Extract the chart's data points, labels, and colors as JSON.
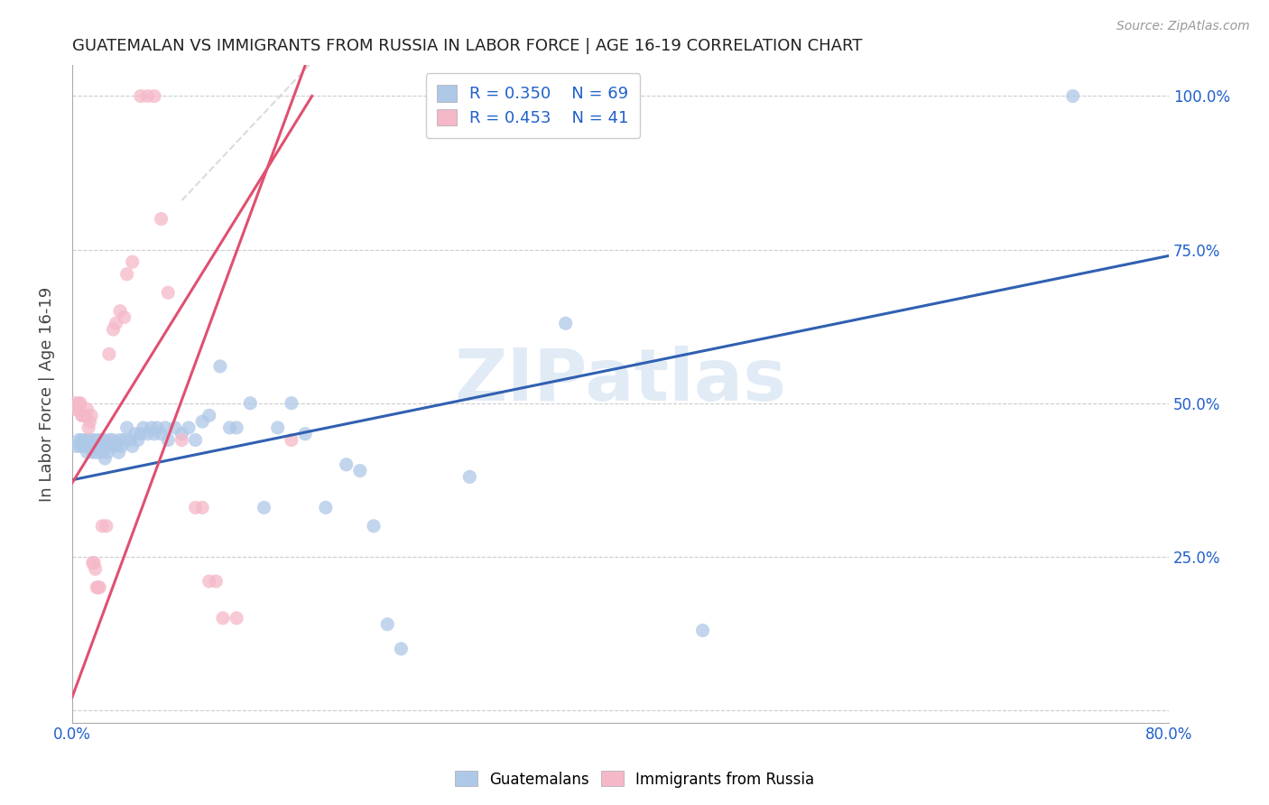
{
  "title": "GUATEMALAN VS IMMIGRANTS FROM RUSSIA IN LABOR FORCE | AGE 16-19 CORRELATION CHART",
  "source": "Source: ZipAtlas.com",
  "ylabel": "In Labor Force | Age 16-19",
  "xlim": [
    0.0,
    0.8
  ],
  "ylim": [
    -0.02,
    1.05
  ],
  "watermark": "ZIPatlas",
  "legend_r1": "R = 0.350",
  "legend_n1": "N = 69",
  "legend_r2": "R = 0.453",
  "legend_n2": "N = 41",
  "blue_color": "#aec8e8",
  "pink_color": "#f5b8c8",
  "blue_line_color": "#3060b0",
  "pink_line_color": "#e05070",
  "blue_scatter": [
    [
      0.003,
      0.43
    ],
    [
      0.005,
      0.44
    ],
    [
      0.006,
      0.43
    ],
    [
      0.007,
      0.44
    ],
    [
      0.008,
      0.43
    ],
    [
      0.009,
      0.44
    ],
    [
      0.01,
      0.43
    ],
    [
      0.011,
      0.42
    ],
    [
      0.012,
      0.44
    ],
    [
      0.013,
      0.43
    ],
    [
      0.014,
      0.44
    ],
    [
      0.015,
      0.42
    ],
    [
      0.016,
      0.43
    ],
    [
      0.017,
      0.44
    ],
    [
      0.018,
      0.42
    ],
    [
      0.019,
      0.43
    ],
    [
      0.02,
      0.44
    ],
    [
      0.021,
      0.42
    ],
    [
      0.022,
      0.43
    ],
    [
      0.023,
      0.44
    ],
    [
      0.024,
      0.41
    ],
    [
      0.025,
      0.43
    ],
    [
      0.026,
      0.42
    ],
    [
      0.027,
      0.44
    ],
    [
      0.028,
      0.43
    ],
    [
      0.03,
      0.44
    ],
    [
      0.032,
      0.43
    ],
    [
      0.034,
      0.42
    ],
    [
      0.035,
      0.44
    ],
    [
      0.036,
      0.43
    ],
    [
      0.038,
      0.44
    ],
    [
      0.04,
      0.46
    ],
    [
      0.042,
      0.44
    ],
    [
      0.044,
      0.43
    ],
    [
      0.046,
      0.45
    ],
    [
      0.048,
      0.44
    ],
    [
      0.05,
      0.45
    ],
    [
      0.052,
      0.46
    ],
    [
      0.055,
      0.45
    ],
    [
      0.058,
      0.46
    ],
    [
      0.06,
      0.45
    ],
    [
      0.062,
      0.46
    ],
    [
      0.065,
      0.45
    ],
    [
      0.068,
      0.46
    ],
    [
      0.07,
      0.44
    ],
    [
      0.075,
      0.46
    ],
    [
      0.08,
      0.45
    ],
    [
      0.085,
      0.46
    ],
    [
      0.09,
      0.44
    ],
    [
      0.095,
      0.47
    ],
    [
      0.1,
      0.48
    ],
    [
      0.108,
      0.56
    ],
    [
      0.115,
      0.46
    ],
    [
      0.12,
      0.46
    ],
    [
      0.13,
      0.5
    ],
    [
      0.14,
      0.33
    ],
    [
      0.15,
      0.46
    ],
    [
      0.16,
      0.5
    ],
    [
      0.17,
      0.45
    ],
    [
      0.185,
      0.33
    ],
    [
      0.2,
      0.4
    ],
    [
      0.21,
      0.39
    ],
    [
      0.22,
      0.3
    ],
    [
      0.23,
      0.14
    ],
    [
      0.24,
      0.1
    ],
    [
      0.29,
      0.38
    ],
    [
      0.36,
      0.63
    ],
    [
      0.46,
      0.13
    ],
    [
      0.73,
      1.0
    ]
  ],
  "pink_scatter": [
    [
      0.002,
      0.5
    ],
    [
      0.003,
      0.49
    ],
    [
      0.004,
      0.49
    ],
    [
      0.005,
      0.5
    ],
    [
      0.006,
      0.5
    ],
    [
      0.007,
      0.48
    ],
    [
      0.008,
      0.48
    ],
    [
      0.009,
      0.48
    ],
    [
      0.01,
      0.48
    ],
    [
      0.011,
      0.49
    ],
    [
      0.012,
      0.46
    ],
    [
      0.013,
      0.47
    ],
    [
      0.014,
      0.48
    ],
    [
      0.015,
      0.24
    ],
    [
      0.016,
      0.24
    ],
    [
      0.017,
      0.23
    ],
    [
      0.018,
      0.2
    ],
    [
      0.019,
      0.2
    ],
    [
      0.02,
      0.2
    ],
    [
      0.022,
      0.3
    ],
    [
      0.025,
      0.3
    ],
    [
      0.027,
      0.58
    ],
    [
      0.03,
      0.62
    ],
    [
      0.032,
      0.63
    ],
    [
      0.035,
      0.65
    ],
    [
      0.038,
      0.64
    ],
    [
      0.04,
      0.71
    ],
    [
      0.044,
      0.73
    ],
    [
      0.05,
      1.0
    ],
    [
      0.055,
      1.0
    ],
    [
      0.06,
      1.0
    ],
    [
      0.065,
      0.8
    ],
    [
      0.07,
      0.68
    ],
    [
      0.08,
      0.44
    ],
    [
      0.09,
      0.33
    ],
    [
      0.095,
      0.33
    ],
    [
      0.1,
      0.21
    ],
    [
      0.105,
      0.21
    ],
    [
      0.11,
      0.15
    ],
    [
      0.12,
      0.15
    ],
    [
      0.16,
      0.44
    ]
  ],
  "blue_trend": [
    0.0,
    0.8,
    0.375,
    0.74
  ],
  "pink_trend": [
    -0.02,
    0.175,
    -0.1,
    1.08
  ],
  "yticks": [
    0.0,
    0.25,
    0.5,
    0.75,
    1.0
  ],
  "ytick_labels": [
    "",
    "25.0%",
    "50.0%",
    "75.0%",
    "100.0%"
  ],
  "xtick_positions": [
    0.0,
    0.1,
    0.2,
    0.3,
    0.4,
    0.5,
    0.6,
    0.7,
    0.8
  ],
  "xtick_labels": [
    "0.0%",
    "",
    "",
    "",
    "",
    "",
    "",
    "",
    "80.0%"
  ]
}
